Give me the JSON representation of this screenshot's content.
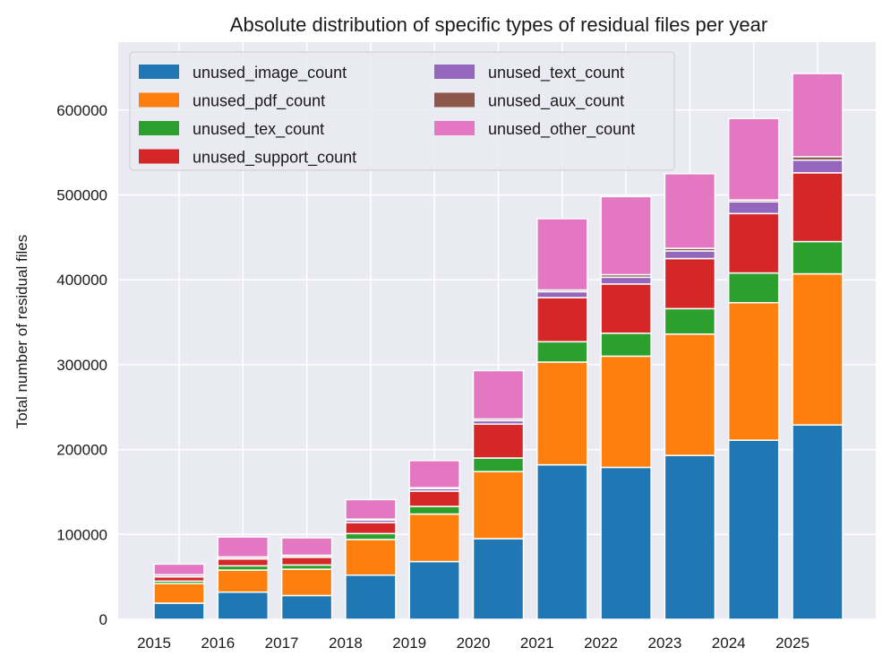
{
  "chart_data": {
    "type": "bar",
    "stacked": true,
    "title": "Absolute distribution of specific types of residual files per year",
    "xlabel": "",
    "ylabel": "Total number of residual files",
    "ylim": [
      0,
      680000
    ],
    "yticks": [
      0,
      100000,
      200000,
      300000,
      400000,
      500000,
      600000
    ],
    "ytick_labels": [
      "0",
      "100000",
      "200000",
      "300000",
      "400000",
      "500000",
      "600000"
    ],
    "categories": [
      "2015",
      "2016",
      "2017",
      "2018",
      "2019",
      "2020",
      "2021",
      "2022",
      "2023",
      "2024",
      "2025"
    ],
    "grid": true,
    "legend_position": "top-left",
    "series": [
      {
        "name": "unused_image_count",
        "color": "#1f77b4",
        "values": [
          19000,
          32000,
          28000,
          52000,
          68000,
          95000,
          182000,
          179000,
          193000,
          211000,
          229000
        ]
      },
      {
        "name": "unused_pdf_count",
        "color": "#ff7f0e",
        "values": [
          23000,
          26000,
          31000,
          42000,
          56000,
          79000,
          121000,
          131000,
          143000,
          162000,
          178000
        ]
      },
      {
        "name": "unused_tex_count",
        "color": "#2ca02c",
        "values": [
          3000,
          5000,
          5000,
          7000,
          9000,
          16000,
          24000,
          27000,
          30000,
          35000,
          38000
        ]
      },
      {
        "name": "unused_support_count",
        "color": "#d62728",
        "values": [
          5000,
          8000,
          9000,
          13000,
          18000,
          40000,
          52000,
          58000,
          59000,
          70000,
          81000
        ]
      },
      {
        "name": "unused_text_count",
        "color": "#9467bd",
        "values": [
          2000,
          2000,
          2000,
          3000,
          3000,
          4000,
          7000,
          8000,
          9000,
          14000,
          15000
        ]
      },
      {
        "name": "unused_aux_count",
        "color": "#8c564b",
        "values": [
          500,
          500,
          500,
          1000,
          1000,
          2000,
          2000,
          3000,
          3000,
          2000,
          4000
        ]
      },
      {
        "name": "unused_other_count",
        "color": "#e377c2",
        "values": [
          12500,
          23500,
          20500,
          23000,
          32000,
          57000,
          84000,
          92000,
          88000,
          96000,
          98000
        ]
      }
    ]
  }
}
